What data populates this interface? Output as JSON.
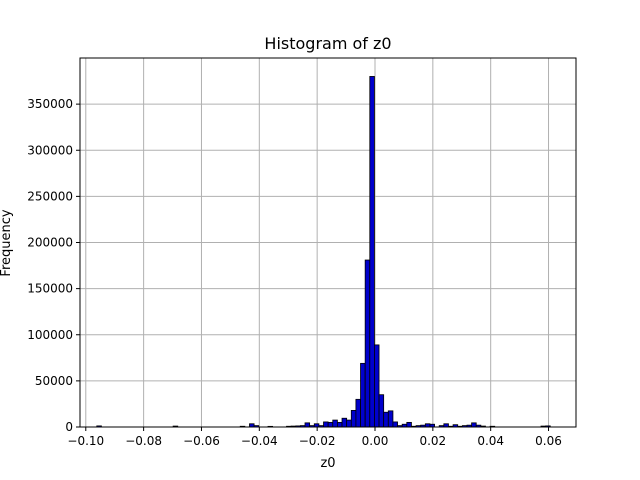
{
  "chart_data": {
    "type": "histogram",
    "title": "Histogram of z0",
    "xlabel": "z0",
    "ylabel": "Frequency",
    "xlim": [
      -0.102,
      0.0695
    ],
    "ylim": [
      0,
      400000
    ],
    "grid": true,
    "bar_color": "#0000cc",
    "edge_color": "#000000",
    "bin_width": 0.0016,
    "x_ticks": [
      {
        "value": -0.1,
        "label": "−0.10"
      },
      {
        "value": -0.08,
        "label": "−0.08"
      },
      {
        "value": -0.06,
        "label": "−0.06"
      },
      {
        "value": -0.04,
        "label": "−0.04"
      },
      {
        "value": -0.02,
        "label": "−0.02"
      },
      {
        "value": 0.0,
        "label": "0.00"
      },
      {
        "value": 0.02,
        "label": "0.02"
      },
      {
        "value": 0.04,
        "label": "0.04"
      },
      {
        "value": 0.06,
        "label": "0.06"
      }
    ],
    "y_ticks": [
      {
        "value": 0,
        "label": "0"
      },
      {
        "value": 50000,
        "label": "50000"
      },
      {
        "value": 100000,
        "label": "100000"
      },
      {
        "value": 150000,
        "label": "150000"
      },
      {
        "value": 200000,
        "label": "200000"
      },
      {
        "value": 250000,
        "label": "250000"
      },
      {
        "value": 300000,
        "label": "300000"
      },
      {
        "value": 350000,
        "label": "350000"
      }
    ],
    "bins": [
      {
        "x": -0.0962,
        "count": 1200
      },
      {
        "x": -0.0698,
        "count": 1000
      },
      {
        "x": -0.0466,
        "count": 800
      },
      {
        "x": -0.0434,
        "count": 3500
      },
      {
        "x": -0.0418,
        "count": 1500
      },
      {
        "x": -0.037,
        "count": 700
      },
      {
        "x": -0.0306,
        "count": 800
      },
      {
        "x": -0.029,
        "count": 1000
      },
      {
        "x": -0.0274,
        "count": 1200
      },
      {
        "x": -0.0258,
        "count": 1500
      },
      {
        "x": -0.0242,
        "count": 4500
      },
      {
        "x": -0.0226,
        "count": 1500
      },
      {
        "x": -0.021,
        "count": 3500
      },
      {
        "x": -0.0194,
        "count": 1500
      },
      {
        "x": -0.0178,
        "count": 5500
      },
      {
        "x": -0.0162,
        "count": 5000
      },
      {
        "x": -0.0146,
        "count": 7500
      },
      {
        "x": -0.013,
        "count": 5000
      },
      {
        "x": -0.0114,
        "count": 9500
      },
      {
        "x": -0.0098,
        "count": 7500
      },
      {
        "x": -0.0082,
        "count": 18000
      },
      {
        "x": -0.0066,
        "count": 30000
      },
      {
        "x": -0.005,
        "count": 69000
      },
      {
        "x": -0.0034,
        "count": 181000
      },
      {
        "x": -0.0018,
        "count": 380000
      },
      {
        "x": -0.0002,
        "count": 89000
      },
      {
        "x": 0.0014,
        "count": 35000
      },
      {
        "x": 0.003,
        "count": 16000
      },
      {
        "x": 0.0046,
        "count": 17500
      },
      {
        "x": 0.0062,
        "count": 5500
      },
      {
        "x": 0.0078,
        "count": 1500
      },
      {
        "x": 0.0094,
        "count": 3000
      },
      {
        "x": 0.011,
        "count": 5000
      },
      {
        "x": 0.0126,
        "count": 800
      },
      {
        "x": 0.0142,
        "count": 1500
      },
      {
        "x": 0.0158,
        "count": 2000
      },
      {
        "x": 0.0174,
        "count": 3500
      },
      {
        "x": 0.019,
        "count": 3000
      },
      {
        "x": 0.0222,
        "count": 1500
      },
      {
        "x": 0.0238,
        "count": 3500
      },
      {
        "x": 0.0254,
        "count": 800
      },
      {
        "x": 0.027,
        "count": 2500
      },
      {
        "x": 0.0286,
        "count": 800
      },
      {
        "x": 0.0302,
        "count": 1500
      },
      {
        "x": 0.0318,
        "count": 2000
      },
      {
        "x": 0.0334,
        "count": 4500
      },
      {
        "x": 0.035,
        "count": 2000
      },
      {
        "x": 0.0366,
        "count": 1000
      },
      {
        "x": 0.0398,
        "count": 800
      },
      {
        "x": 0.0574,
        "count": 1000
      },
      {
        "x": 0.059,
        "count": 1200
      }
    ]
  }
}
